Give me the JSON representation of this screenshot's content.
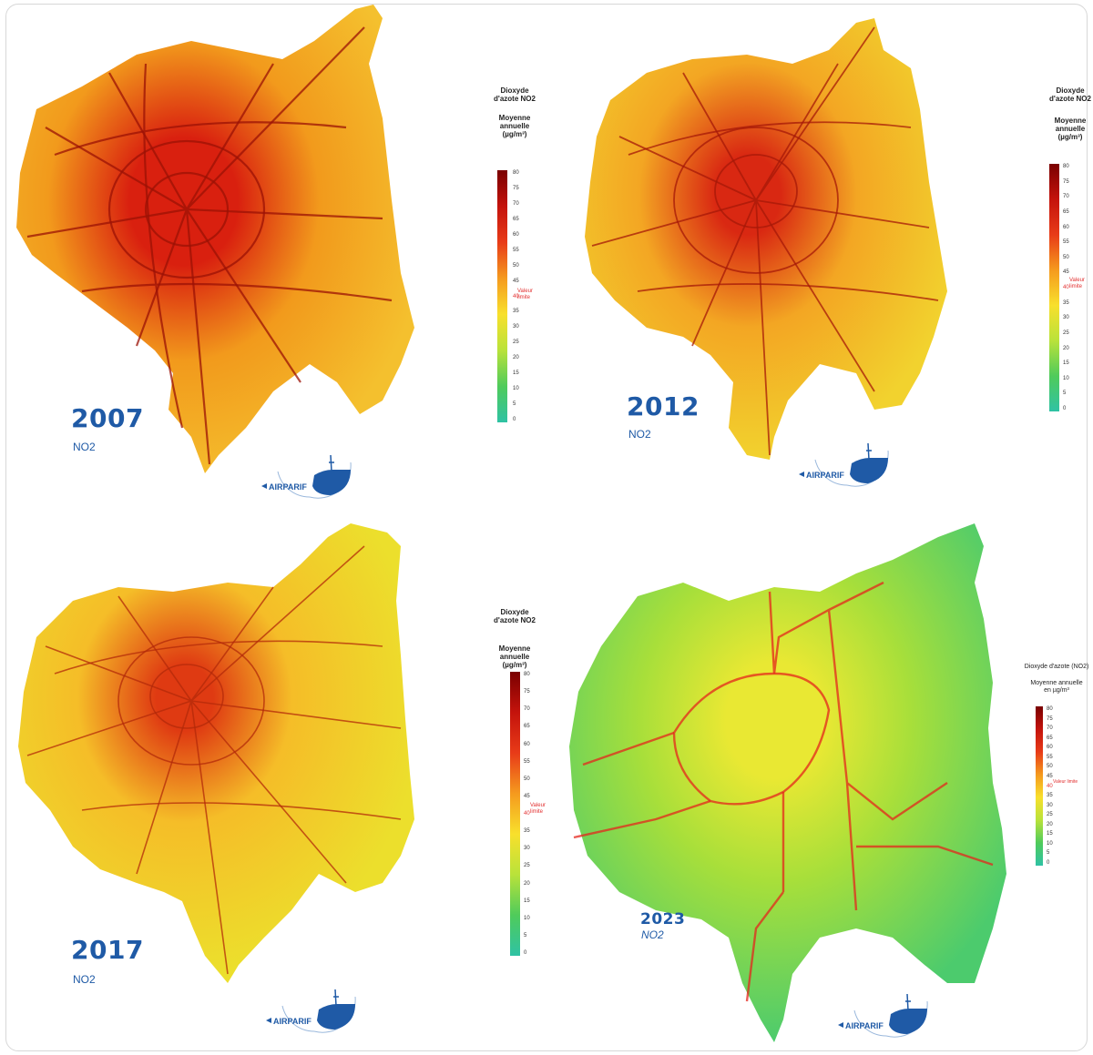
{
  "panels": [
    {
      "year": "2007",
      "pollutant": "NO2",
      "logo": "AIRPARIF",
      "legend": {
        "title_line1": "Dioxyde",
        "title_line2": "d'azote NO2",
        "subtitle_line1": "Moyenne",
        "subtitle_line2": "annuelle",
        "subtitle_line3": "(µg/m³)",
        "limit_label": "Valeur limite"
      },
      "palette": {
        "outer": "#f29a1c",
        "core": "#d9200f",
        "edge": "#f4c02e",
        "roads": "#9b1206"
      }
    },
    {
      "year": "2012",
      "pollutant": "NO2",
      "logo": "AIRPARIF",
      "legend": {
        "title_line1": "Dioxyde",
        "title_line2": "d'azote NO2",
        "subtitle_line1": "Moyenne",
        "subtitle_line2": "annuelle",
        "subtitle_line3": "(µg/m³)",
        "limit_label": "Valeur limite"
      },
      "palette": {
        "outer": "#f3a623",
        "core": "#d92812",
        "edge": "#f2d22e",
        "roads": "#a51808"
      }
    },
    {
      "year": "2017",
      "pollutant": "NO2",
      "logo": "AIRPARIF",
      "legend": {
        "title_line1": "Dioxyde",
        "title_line2": "d'azote NO2",
        "subtitle_line1": "Moyenne",
        "subtitle_line2": "annuelle",
        "subtitle_line3": "(µg/m³)",
        "limit_label": "Valeur limite"
      },
      "palette": {
        "outer": "#f5bd28",
        "core": "#df3a12",
        "edge": "#ecdf2c",
        "roads": "#b32a0a"
      }
    },
    {
      "year": "2023",
      "pollutant": "NO2",
      "logo": "AIRPARIF",
      "legend": {
        "title_line1": "Dioxyde d'azote (NO2)",
        "title_line2": "",
        "subtitle_line1": "Moyenne annuelle",
        "subtitle_line2": "en µg/m³",
        "subtitle_line3": "",
        "limit_label": "Valeur limite"
      },
      "palette": {
        "outer": "#a8df3a",
        "core": "#e9e833",
        "edge": "#4ccb6d",
        "roads": "#e4261c"
      }
    }
  ],
  "scale": {
    "ticks": [
      80,
      75,
      70,
      65,
      60,
      55,
      50,
      45,
      40,
      35,
      30,
      25,
      20,
      15,
      10,
      5,
      0
    ],
    "limit_value": 40,
    "colors": [
      "#7a0000",
      "#c4130c",
      "#e83b18",
      "#f59a1e",
      "#f8e02c",
      "#b9e23a",
      "#4fcb5b",
      "#2fc2a4"
    ]
  }
}
